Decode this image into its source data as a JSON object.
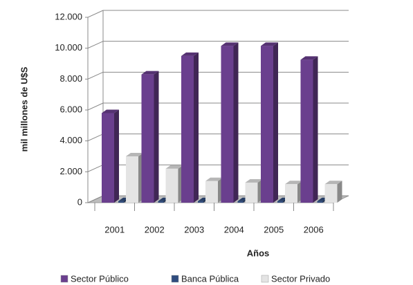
{
  "chart_data": {
    "type": "bar3d",
    "x_label": "Años",
    "y_label": "mil millones de U$S",
    "categories": [
      "2001",
      "2002",
      "2003",
      "2004",
      "2005",
      "2006"
    ],
    "series": [
      {
        "name": "Sector Público",
        "color": "#6a3f8e",
        "values": [
          5800,
          8300,
          9500,
          10150,
          10150,
          9250
        ]
      },
      {
        "name": "Banca Pública",
        "color": "#2f4c7e",
        "values": [
          100,
          100,
          100,
          100,
          100,
          100
        ]
      },
      {
        "name": "Sector Privado",
        "color": "#e4e4e4",
        "values": [
          3000,
          2200,
          1400,
          1300,
          1200,
          1200
        ]
      }
    ],
    "ylim": [
      0,
      12000
    ],
    "yticks": [
      0,
      {
        "value": 2000,
        "label": "2.000"
      },
      {
        "value": 4000,
        "label": "4.000"
      },
      {
        "value": 6000,
        "label": "6.000"
      },
      {
        "value": 8000,
        "label": "8.000"
      },
      {
        "value": 10000,
        "label": "10.000"
      },
      {
        "value": 12000,
        "label": "12.000"
      }
    ],
    "grid": true
  }
}
